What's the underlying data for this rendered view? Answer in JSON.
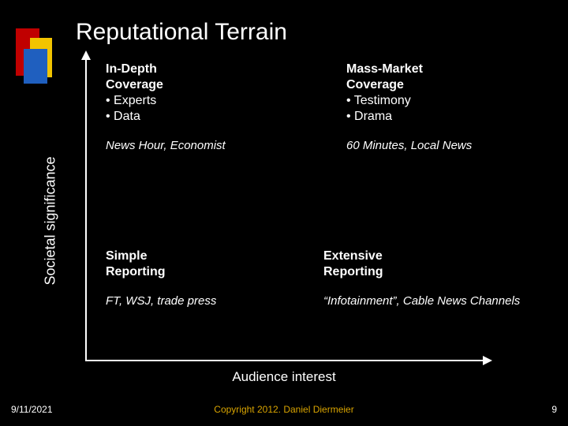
{
  "title": "Reputational Terrain",
  "axes": {
    "y": "Societal significance",
    "x": "Audience interest"
  },
  "axis_color": "#ffffff",
  "background_color": "#000000",
  "text_color": "#ffffff",
  "logo_colors": {
    "red": "#c00000",
    "yellow": "#f2c400",
    "blue": "#1f5fbf"
  },
  "quadrants": {
    "top_left": {
      "heading_l1": "In-Depth",
      "heading_l2": "Coverage",
      "bullet1": "• Experts",
      "bullet2": "• Data",
      "examples": "News Hour, Economist"
    },
    "top_right": {
      "heading_l1": "Mass-Market",
      "heading_l2": "Coverage",
      "bullet1": "• Testimony",
      "bullet2": "• Drama",
      "examples": "60  Minutes, Local News"
    },
    "bottom_left": {
      "heading_l1": "Simple",
      "heading_l2": "Reporting",
      "examples": "FT, WSJ, trade press"
    },
    "bottom_right": {
      "heading_l1": "Extensive",
      "heading_l2": "Reporting",
      "examples": "“Infotainment”, Cable News Channels"
    }
  },
  "footer": {
    "date": "9/11/2021",
    "copyright": "Copyright 2012. Daniel Diermeier",
    "copyright_color": "#d9a400",
    "page": "9"
  },
  "fonts": {
    "title_size_pt": 30,
    "body_size_pt": 16,
    "axis_label_size_pt": 18,
    "footer_size_pt": 12
  }
}
